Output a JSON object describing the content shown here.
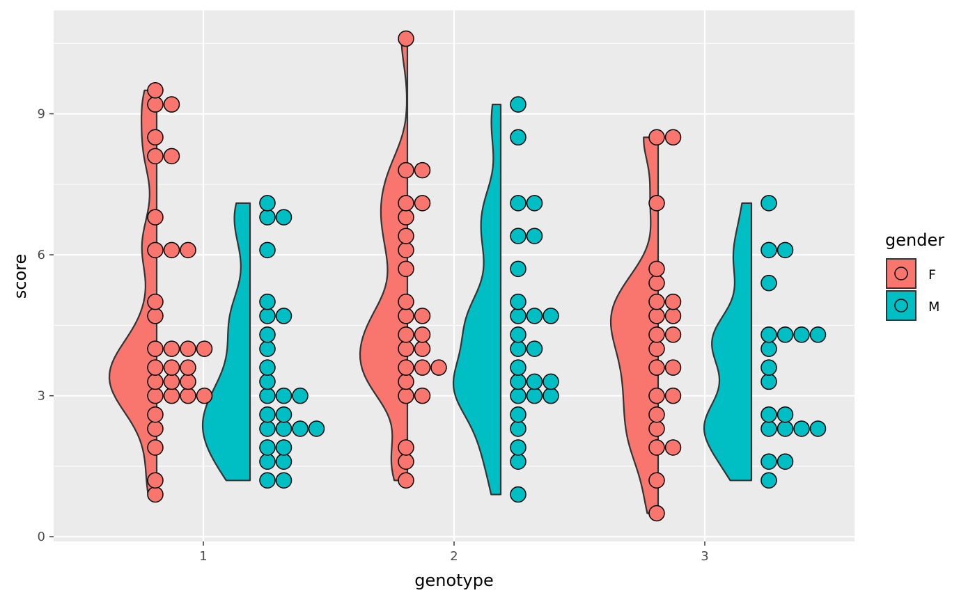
{
  "chart_data": {
    "type": "scatter",
    "subtype": "half-violin with dot plot",
    "title": "",
    "xlabel": "genotype",
    "ylabel": "score",
    "categories": [
      "1",
      "2",
      "3"
    ],
    "x_ticks": [
      "1",
      "2",
      "3"
    ],
    "ylim": [
      -0.1,
      11.2
    ],
    "y_ticks": [
      0,
      3,
      6,
      9
    ],
    "grid": true,
    "legend": {
      "title": "gender",
      "position": "right"
    },
    "colors": {
      "F": "#F8766D",
      "M": "#00BFC4",
      "panel": "#EBEBEB",
      "grid": "#FFFFFF",
      "outline": "#333333"
    },
    "series": [
      {
        "name": "F",
        "values_by_category": {
          "1": [
            0.9,
            1.2,
            1.9,
            2.3,
            2.6,
            3.0,
            3.0,
            3.0,
            3.0,
            3.3,
            3.3,
            3.3,
            3.6,
            3.6,
            3.6,
            4.0,
            4.0,
            4.0,
            4.0,
            4.7,
            5.0,
            6.1,
            6.1,
            6.1,
            6.8,
            8.1,
            8.1,
            8.5,
            9.2,
            9.2,
            9.5
          ],
          "2": [
            1.2,
            1.6,
            1.9,
            3.0,
            3.0,
            3.3,
            3.6,
            3.6,
            3.6,
            4.0,
            4.0,
            4.3,
            4.3,
            4.7,
            4.7,
            5.0,
            5.7,
            6.1,
            6.4,
            6.8,
            7.1,
            7.1,
            7.8,
            7.8,
            10.6
          ],
          "3": [
            0.5,
            1.2,
            1.9,
            1.9,
            2.3,
            2.6,
            3.0,
            3.0,
            3.6,
            3.6,
            4.0,
            4.3,
            4.3,
            4.7,
            4.7,
            5.0,
            5.0,
            5.4,
            5.7,
            7.1,
            8.5,
            8.5
          ]
        }
      },
      {
        "name": "M",
        "values_by_category": {
          "1": [
            1.2,
            1.2,
            1.6,
            1.6,
            1.9,
            1.9,
            2.3,
            2.3,
            2.3,
            2.3,
            2.6,
            2.6,
            3.0,
            3.0,
            3.0,
            3.3,
            3.6,
            4.0,
            4.3,
            4.7,
            4.7,
            5.0,
            6.1,
            6.8,
            6.8,
            7.1
          ],
          "2": [
            0.9,
            1.6,
            1.9,
            2.3,
            2.6,
            3.0,
            3.0,
            3.0,
            3.3,
            3.3,
            3.3,
            3.6,
            4.0,
            4.0,
            4.3,
            4.7,
            4.7,
            4.7,
            5.0,
            5.7,
            6.4,
            6.4,
            7.1,
            7.1,
            8.5,
            9.2
          ],
          "3": [
            1.2,
            1.6,
            1.6,
            2.3,
            2.3,
            2.3,
            2.3,
            2.6,
            2.6,
            3.3,
            3.6,
            4.0,
            4.3,
            4.3,
            4.3,
            4.3,
            5.4,
            6.1,
            6.1,
            7.1
          ]
        }
      }
    ]
  }
}
